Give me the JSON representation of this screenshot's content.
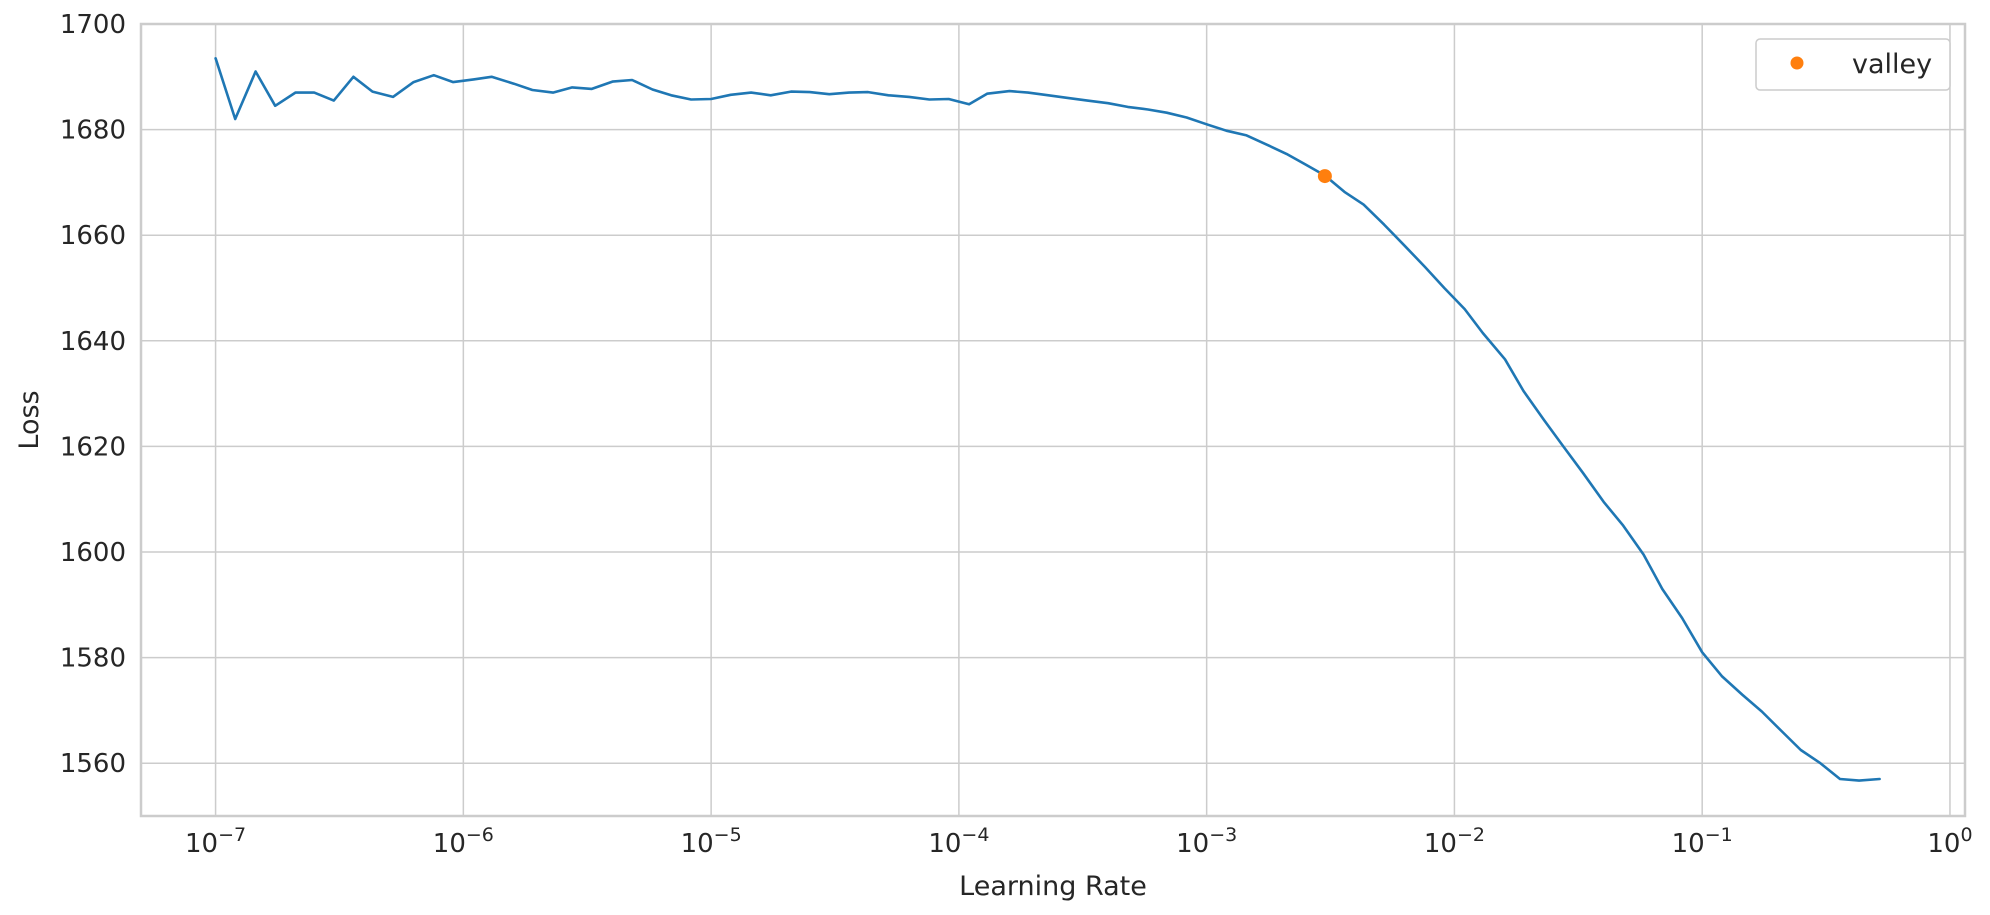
{
  "chart_data": {
    "type": "line",
    "xlabel": "Learning Rate",
    "ylabel": "Loss",
    "xscale": "log",
    "xlim": [
      5e-08,
      1.15
    ],
    "ylim": [
      1550,
      1700
    ],
    "grid": true,
    "x_ticks": [
      {
        "value": 1e-07,
        "base": "10",
        "exp": "−7"
      },
      {
        "value": 1e-06,
        "base": "10",
        "exp": "−6"
      },
      {
        "value": 1e-05,
        "base": "10",
        "exp": "−5"
      },
      {
        "value": 0.0001,
        "base": "10",
        "exp": "−4"
      },
      {
        "value": 0.001,
        "base": "10",
        "exp": "−3"
      },
      {
        "value": 0.01,
        "base": "10",
        "exp": "−2"
      },
      {
        "value": 0.1,
        "base": "10",
        "exp": "−1"
      },
      {
        "value": 1,
        "base": "10",
        "exp": "0"
      }
    ],
    "y_ticks": [
      {
        "value": 1560,
        "label": "1560"
      },
      {
        "value": 1580,
        "label": "1580"
      },
      {
        "value": 1600,
        "label": "1600"
      },
      {
        "value": 1620,
        "label": "1620"
      },
      {
        "value": 1640,
        "label": "1640"
      },
      {
        "value": 1660,
        "label": "1660"
      },
      {
        "value": 1680,
        "label": "1680"
      },
      {
        "value": 1700,
        "label": "1700"
      }
    ],
    "legend": {
      "position": "top-right",
      "entries": [
        {
          "label": "valley",
          "color": "#ff7f0e",
          "marker": "circle"
        }
      ]
    },
    "series": [
      {
        "color": "#1f77b4",
        "points": [
          [
            1e-07,
            1693.5
          ],
          [
            1.2e-07,
            1682.0
          ],
          [
            1.45e-07,
            1691.0
          ],
          [
            1.74e-07,
            1684.5
          ],
          [
            2.1e-07,
            1687.0
          ],
          [
            2.5e-07,
            1687.0
          ],
          [
            3e-07,
            1685.5
          ],
          [
            3.6e-07,
            1690.0
          ],
          [
            4.3e-07,
            1687.2
          ],
          [
            5.2e-07,
            1686.2
          ],
          [
            6.3e-07,
            1689.0
          ],
          [
            7.6e-07,
            1690.3
          ],
          [
            9.1e-07,
            1689.0
          ],
          [
            1.1e-06,
            1689.5
          ],
          [
            1.3e-06,
            1690.0
          ],
          [
            1.6e-06,
            1688.7
          ],
          [
            1.9e-06,
            1687.5
          ],
          [
            2.3e-06,
            1687.0
          ],
          [
            2.75e-06,
            1688.0
          ],
          [
            3.3e-06,
            1687.7
          ],
          [
            4e-06,
            1689.1
          ],
          [
            4.8e-06,
            1689.4
          ],
          [
            5.8e-06,
            1687.6
          ],
          [
            6.9e-06,
            1686.5
          ],
          [
            8.3e-06,
            1685.7
          ],
          [
            1e-05,
            1685.8
          ],
          [
            1.2e-05,
            1686.6
          ],
          [
            1.45e-05,
            1687.0
          ],
          [
            1.74e-05,
            1686.5
          ],
          [
            2.1e-05,
            1687.2
          ],
          [
            2.5e-05,
            1687.1
          ],
          [
            3e-05,
            1686.7
          ],
          [
            3.6e-05,
            1687.0
          ],
          [
            4.3e-05,
            1687.1
          ],
          [
            5.2e-05,
            1686.5
          ],
          [
            6.3e-05,
            1686.2
          ],
          [
            7.6e-05,
            1685.7
          ],
          [
            9.1e-05,
            1685.8
          ],
          [
            0.00011,
            1684.8
          ],
          [
            0.00013,
            1686.8
          ],
          [
            0.00016,
            1687.3
          ],
          [
            0.00019,
            1687.0
          ],
          [
            0.00023,
            1686.5
          ],
          [
            0.000275,
            1686.0
          ],
          [
            0.00033,
            1685.5
          ],
          [
            0.0004,
            1685.0
          ],
          [
            0.00048,
            1684.3
          ],
          [
            0.00058,
            1683.8
          ],
          [
            0.00069,
            1683.2
          ],
          [
            0.00083,
            1682.3
          ],
          [
            0.001,
            1681.0
          ],
          [
            0.0012,
            1679.8
          ],
          [
            0.00145,
            1678.9
          ],
          [
            0.00174,
            1677.2
          ],
          [
            0.0021,
            1675.4
          ],
          [
            0.0025,
            1673.4
          ],
          [
            0.003,
            1671.3
          ],
          [
            0.0036,
            1668.2
          ],
          [
            0.0043,
            1665.8
          ],
          [
            0.0052,
            1662.0
          ],
          [
            0.0063,
            1658.0
          ],
          [
            0.0076,
            1654.0
          ],
          [
            0.0091,
            1650.0
          ],
          [
            0.011,
            1646.0
          ],
          [
            0.013,
            1641.5
          ],
          [
            0.016,
            1636.5
          ],
          [
            0.019,
            1630.5
          ],
          [
            0.023,
            1625.0
          ],
          [
            0.0275,
            1620.0
          ],
          [
            0.033,
            1615.0
          ],
          [
            0.04,
            1609.5
          ],
          [
            0.048,
            1605.0
          ],
          [
            0.058,
            1599.5
          ],
          [
            0.069,
            1593.0
          ],
          [
            0.083,
            1587.5
          ],
          [
            0.1,
            1581.0
          ],
          [
            0.12,
            1576.5
          ],
          [
            0.145,
            1573.0
          ],
          [
            0.174,
            1569.8
          ],
          [
            0.21,
            1566.0
          ],
          [
            0.25,
            1562.5
          ],
          [
            0.3,
            1560.0
          ],
          [
            0.36,
            1557.0
          ],
          [
            0.43,
            1556.7
          ],
          [
            0.52,
            1557.0
          ]
        ]
      }
    ],
    "markers": [
      {
        "name": "valley",
        "x": 0.003,
        "y": 1671.2,
        "color": "#ff7f0e"
      }
    ]
  }
}
